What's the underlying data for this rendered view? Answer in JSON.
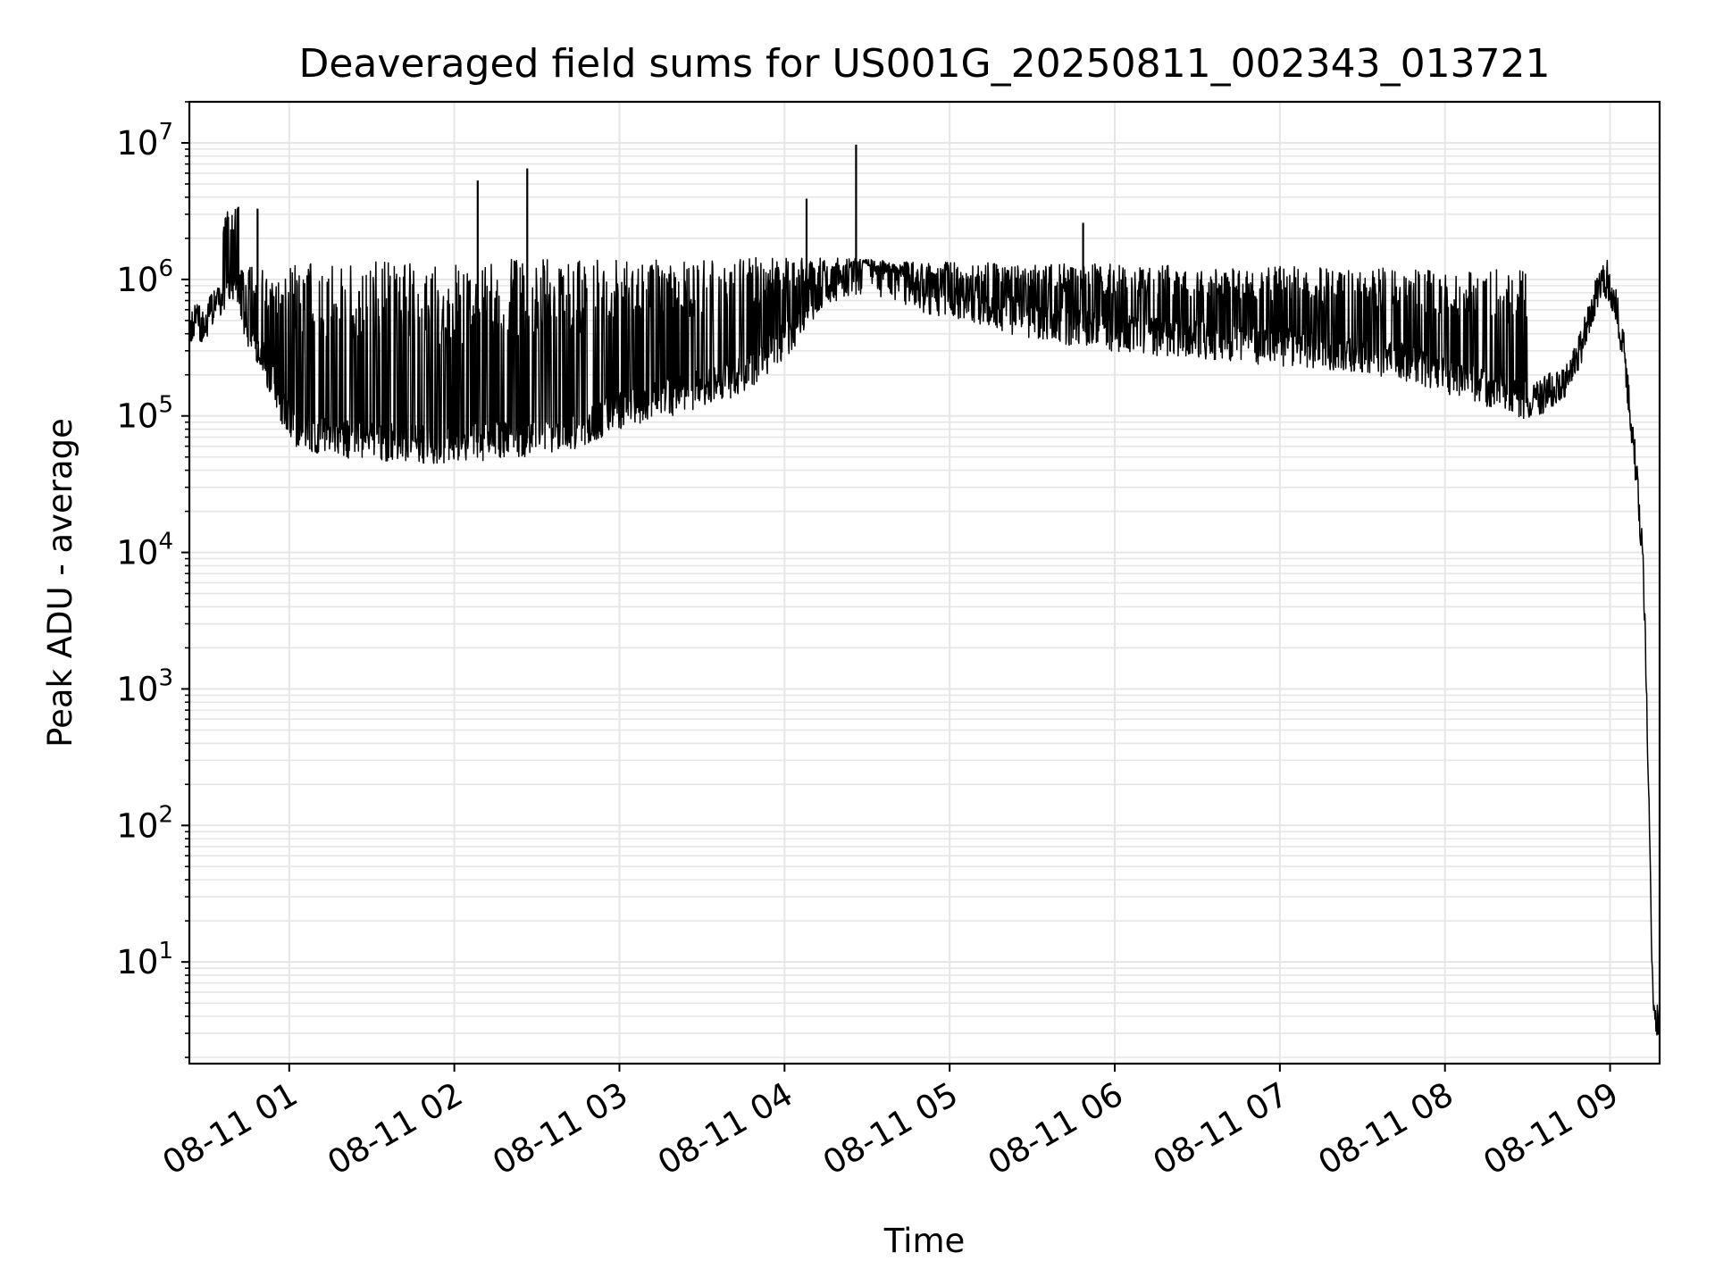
{
  "chart_data": {
    "type": "line",
    "title": "Deaveraged field sums for US001G_20250811_002343_013721",
    "xlabel": "Time",
    "ylabel": "Peak ADU - average",
    "x_scale": "time",
    "y_scale": "log",
    "xlim": [
      "2025-08-11 00:23:43",
      "2025-08-11 09:18:00"
    ],
    "ylim": [
      1.8,
      20000000
    ],
    "grid": true,
    "legend": "none",
    "line_color": "#000000",
    "grid_color": "#e6e6e6",
    "x_ticks": [
      {
        "t": "2025-08-11 01:00",
        "label": "08-11 01"
      },
      {
        "t": "2025-08-11 02:00",
        "label": "08-11 02"
      },
      {
        "t": "2025-08-11 03:00",
        "label": "08-11 03"
      },
      {
        "t": "2025-08-11 04:00",
        "label": "08-11 04"
      },
      {
        "t": "2025-08-11 05:00",
        "label": "08-11 05"
      },
      {
        "t": "2025-08-11 06:00",
        "label": "08-11 06"
      },
      {
        "t": "2025-08-11 07:00",
        "label": "08-11 07"
      },
      {
        "t": "2025-08-11 08:00",
        "label": "08-11 08"
      },
      {
        "t": "2025-08-11 09:00",
        "label": "08-11 09"
      }
    ],
    "y_ticks": [
      {
        "value": 10,
        "base": "10",
        "exp": "1"
      },
      {
        "value": 100,
        "base": "10",
        "exp": "2"
      },
      {
        "value": 1000,
        "base": "10",
        "exp": "3"
      },
      {
        "value": 10000,
        "base": "10",
        "exp": "4"
      },
      {
        "value": 100000,
        "base": "10",
        "exp": "5"
      },
      {
        "value": 1000000,
        "base": "10",
        "exp": "6"
      },
      {
        "value": 10000000,
        "base": "10",
        "exp": "7"
      }
    ],
    "series": [
      {
        "x": [
          "2025-08-11 00:23:43",
          "2025-08-11 00:26:00",
          "2025-08-11 00:28:00",
          "2025-08-11 00:30:00",
          "2025-08-11 00:32:00",
          "2025-08-11 00:34:00",
          "2025-08-11 00:36:00",
          "2025-08-11 00:38:00",
          "2025-08-11 00:40:00",
          "2025-08-11 00:42:00",
          "2025-08-11 00:44:00",
          "2025-08-11 00:46:00",
          "2025-08-11 00:48:00",
          "2025-08-11 00:50:00",
          "2025-08-11 00:52:00",
          "2025-08-11 00:54:00",
          "2025-08-11 00:56:00",
          "2025-08-11 00:58:00",
          "2025-08-11 01:00:00",
          "2025-08-11 01:03:00",
          "2025-08-11 01:06:00",
          "2025-08-11 01:10:00",
          "2025-08-11 01:15:00",
          "2025-08-11 01:20:00",
          "2025-08-11 01:25:00",
          "2025-08-11 01:30:00",
          "2025-08-11 01:36:00",
          "2025-08-11 01:42:00",
          "2025-08-11 01:50:00",
          "2025-08-11 02:00:00",
          "2025-08-11 02:10:00",
          "2025-08-11 02:20:00",
          "2025-08-11 02:30:00",
          "2025-08-11 02:45:00",
          "2025-08-11 03:00:00",
          "2025-08-11 03:15:00",
          "2025-08-11 03:30:00",
          "2025-08-11 03:45:00",
          "2025-08-11 04:00:00",
          "2025-08-11 04:15:00",
          "2025-08-11 04:30:00",
          "2025-08-11 04:45:00",
          "2025-08-11 05:00:00",
          "2025-08-11 05:15:00",
          "2025-08-11 05:30:00",
          "2025-08-11 05:45:00",
          "2025-08-11 06:00:00",
          "2025-08-11 06:15:00",
          "2025-08-11 06:30:00",
          "2025-08-11 06:45:00",
          "2025-08-11 07:00:00",
          "2025-08-11 07:15:00",
          "2025-08-11 07:30:00",
          "2025-08-11 07:45:00",
          "2025-08-11 08:00:00",
          "2025-08-11 08:10:00",
          "2025-08-11 08:20:00",
          "2025-08-11 08:30:00",
          "2025-08-11 08:36:00",
          "2025-08-11 08:42:00",
          "2025-08-11 08:46:00",
          "2025-08-11 08:50:00",
          "2025-08-11 08:53:00",
          "2025-08-11 08:56:00",
          "2025-08-11 08:59:00",
          "2025-08-11 09:02:00",
          "2025-08-11 09:05:00",
          "2025-08-11 09:08:00",
          "2025-08-11 09:10:00",
          "2025-08-11 09:12:00",
          "2025-08-11 09:13:00",
          "2025-08-11 09:14:00",
          "2025-08-11 09:15:00",
          "2025-08-11 09:16:00",
          "2025-08-11 09:18:00"
        ],
        "y": [
          450000,
          500000,
          460000,
          520000,
          600000,
          650000,
          720000,
          1000000,
          900000,
          800000,
          500000,
          400000,
          350000,
          300000,
          220000,
          180000,
          140000,
          110000,
          95000,
          80000,
          75000,
          72000,
          70000,
          68000,
          66000,
          65000,
          64000,
          63000,
          62000,
          62000,
          64000,
          66000,
          70000,
          80000,
          110000,
          130000,
          160000,
          200000,
          350000,
          900000,
          1100000,
          850000,
          700000,
          600000,
          500000,
          450000,
          400000,
          380000,
          360000,
          340000,
          320000,
          300000,
          280000,
          250000,
          200000,
          170000,
          150000,
          130000,
          140000,
          170000,
          220000,
          350000,
          600000,
          900000,
          1000000,
          700000,
          300000,
          80000,
          30000,
          8000,
          1500,
          200,
          15,
          4,
          4
        ],
        "envelope_upper": [
          null,
          null,
          null,
          null,
          null,
          null,
          null,
          3300000,
          3300000,
          null,
          1200000,
          1300000,
          null,
          null,
          1300000,
          1300000,
          1300000,
          1300000,
          1300000,
          1300000,
          1300000,
          1300000,
          1350000,
          1350000,
          1400000,
          1350000,
          1350000,
          1350000,
          1300000,
          1300000,
          1350000,
          1400000,
          1400000,
          1400000,
          1400000,
          1400000,
          1400000,
          1450000,
          1500000,
          1450000,
          1400000,
          1350000,
          1350000,
          1350000,
          1300000,
          1300000,
          1300000,
          1300000,
          1250000,
          1250000,
          1250000,
          1250000,
          1250000,
          1250000,
          1200000,
          1200000,
          1200000,
          null,
          null,
          null,
          null,
          null,
          null,
          null,
          null,
          null,
          null,
          null,
          null,
          null,
          null,
          null,
          null,
          null,
          null
        ],
        "spikes": [
          {
            "t": "2025-08-11 00:41:30",
            "value": 3400000
          },
          {
            "t": "2025-08-11 00:48:30",
            "value": 3300000
          },
          {
            "t": "2025-08-11 02:08:30",
            "value": 5300000
          },
          {
            "t": "2025-08-11 02:26:30",
            "value": 6500000
          },
          {
            "t": "2025-08-11 04:08:00",
            "value": 3900000
          },
          {
            "t": "2025-08-11 04:26:00",
            "value": 9700000
          },
          {
            "t": "2025-08-11 05:48:30",
            "value": 2600000
          }
        ]
      }
    ]
  }
}
